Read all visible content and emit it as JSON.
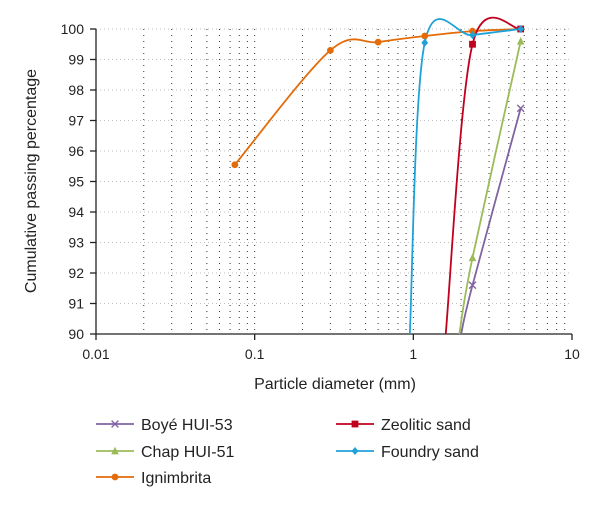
{
  "chart_data": {
    "type": "line",
    "title": "",
    "xlabel": "Particle diameter (mm)",
    "ylabel": "Cumulative passing percentage",
    "xscale": "log",
    "xlim": [
      0.01,
      10
    ],
    "ylim": [
      90,
      100
    ],
    "xticks": [
      "0.01",
      "0.1",
      "1",
      "10"
    ],
    "yticks": [
      "90",
      "91",
      "92",
      "93",
      "94",
      "95",
      "96",
      "97",
      "98",
      "99",
      "100"
    ],
    "grid": "dotted",
    "legend_position": "bottom",
    "series": [
      {
        "name": "Boyé HUI-53",
        "color": "#8064a2",
        "marker": "x",
        "x": [
          2.0,
          2.36,
          4.75
        ],
        "y": [
          90.0,
          91.6,
          97.4
        ]
      },
      {
        "name": "Chap HUI-51",
        "color": "#9bbb59",
        "marker": "triangle",
        "x": [
          1.95,
          2.36,
          4.75
        ],
        "y": [
          90.0,
          92.5,
          99.6
        ]
      },
      {
        "name": "Ignimbrita",
        "color": "#e36c09",
        "marker": "circle",
        "x": [
          0.075,
          0.3,
          0.6,
          1.18,
          2.36,
          4.75
        ],
        "y": [
          95.55,
          99.3,
          99.57,
          99.77,
          99.93,
          100.0
        ]
      },
      {
        "name": "Zeolitic sand",
        "color": "#c0001d",
        "marker": "square",
        "x": [
          1.6,
          2.36,
          4.75
        ],
        "y": [
          90.0,
          99.5,
          100.0
        ]
      },
      {
        "name": "Foundry sand",
        "color": "#1fa2d8",
        "marker": "diamond",
        "x": [
          0.95,
          1.18,
          2.36,
          4.75
        ],
        "y": [
          90.0,
          99.55,
          99.8,
          100.0
        ]
      }
    ]
  }
}
